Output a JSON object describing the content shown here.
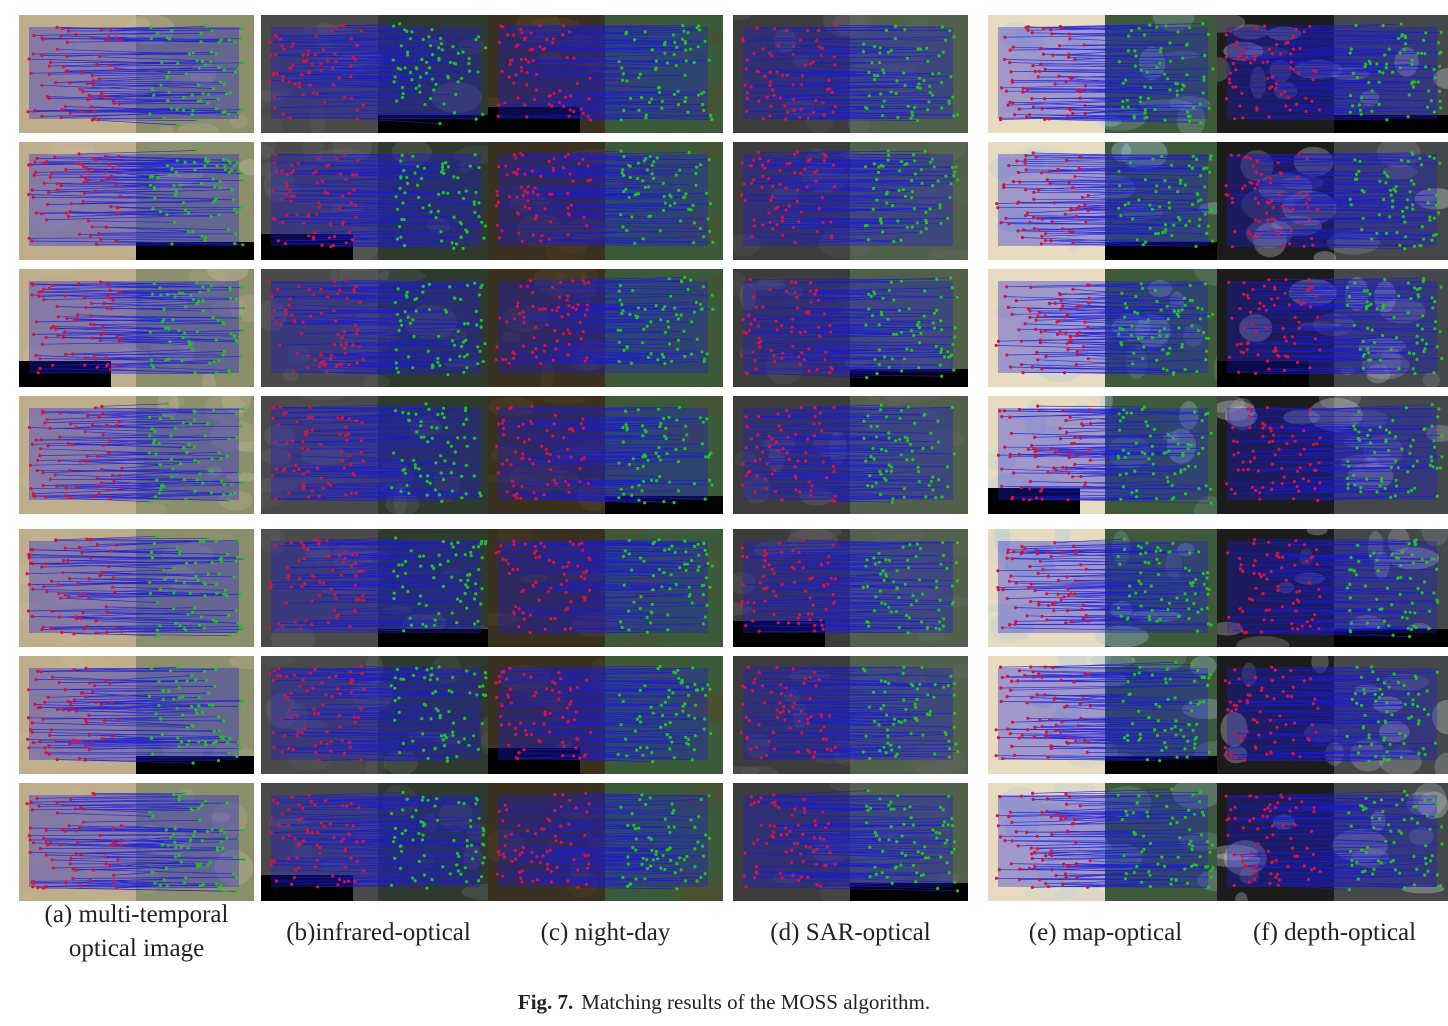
{
  "columns": [
    {
      "id": "a",
      "label_lines": [
        "(a) multi-temporal",
        "optical image"
      ]
    },
    {
      "id": "b",
      "label_lines": [
        "(b)infrared-optical"
      ]
    },
    {
      "id": "c",
      "label_lines": [
        "(c) night-day"
      ]
    },
    {
      "id": "d",
      "label_lines": [
        "(d) SAR-optical"
      ]
    },
    {
      "id": "e",
      "label_lines": [
        "(e) map-optical"
      ]
    },
    {
      "id": "f",
      "label_lines": [
        "(f) depth-optical"
      ]
    }
  ],
  "rows": 7,
  "caption": {
    "number": "Fig. 7.",
    "text": "Matching results of the MOSS algorithm."
  },
  "colors": {
    "match_line": "#1a1ad6",
    "left_point": "#d4143c",
    "right_point": "#22c21f"
  },
  "column_palettes": {
    "a": [
      "#bfae8c",
      "#8c8f6c",
      "#c9b99a"
    ],
    "b": [
      "#4a4a4a",
      "#2e3a2e",
      "#6a6a6a"
    ],
    "c": [
      "#3a3020",
      "#3b5a3a",
      "#5a4a2a"
    ],
    "d": [
      "#3c3c3c",
      "#50604a",
      "#6a6a6a"
    ],
    "e": [
      "#e8dcc0",
      "#3e5a3a",
      "#a8c8e0"
    ],
    "f": [
      "#1c1c1c",
      "#44484a",
      "#d0d0d0"
    ]
  }
}
